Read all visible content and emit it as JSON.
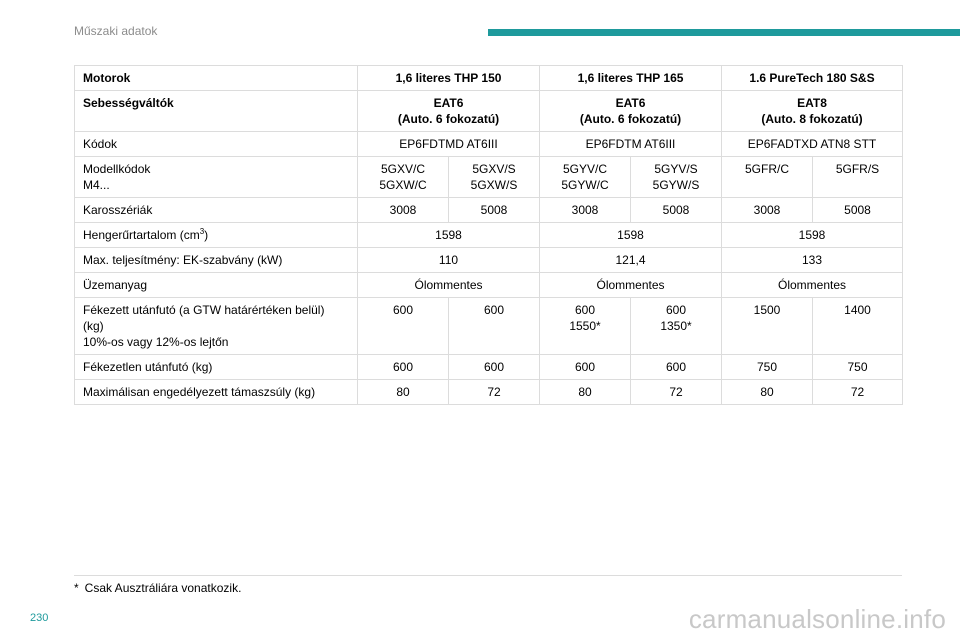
{
  "header": {
    "section_title": "Műszaki adatok"
  },
  "table": {
    "engines": {
      "label": "Motorok",
      "values": [
        "1,6 literes THP 150",
        "1,6 literes THP 165",
        "1.6 PureTech 180 S&S"
      ]
    },
    "gearboxes": {
      "label": "Sebességváltók",
      "values": [
        "EAT6\n(Auto. 6 fokozatú)",
        "EAT6\n(Auto. 6 fokozatú)",
        "EAT8\n(Auto. 8 fokozatú)"
      ]
    },
    "codes": {
      "label": "Kódok",
      "values": [
        "EP6FDTMD AT6III",
        "EP6FDTM AT6III",
        "EP6FADTXD ATN8 STT"
      ]
    },
    "model_codes": {
      "label": "Modellkódok\nM4...",
      "values": [
        "5GXV/C\n5GXW/C",
        "5GXV/S\n5GXW/S",
        "5GYV/C\n5GYW/C",
        "5GYV/S\n5GYW/S",
        "5GFR/C",
        "5GFR/S"
      ]
    },
    "bodies": {
      "label": "Karosszériák",
      "values": [
        "3008",
        "5008",
        "3008",
        "5008",
        "3008",
        "5008"
      ]
    },
    "displacement": {
      "label": "Hengerűrtartalom (cm",
      "label_sup": "3",
      "label_end": ")",
      "values": [
        "1598",
        "1598",
        "1598"
      ]
    },
    "max_power": {
      "label": "Max. teljesítmény: EK-szabvány (kW)",
      "values": [
        "110",
        "121,4",
        "133"
      ]
    },
    "fuel": {
      "label": "Üzemanyag",
      "values": [
        "Ólommentes",
        "Ólommentes",
        "Ólommentes"
      ]
    },
    "braked_trailer": {
      "label": "Fékezett utánfutó (a GTW határértéken belül)\n(kg)\n10%-os vagy 12%-os lejtőn",
      "values": [
        "600",
        "600",
        "600\n1550*",
        "600\n1350*",
        "1500",
        "1400"
      ]
    },
    "unbraked_trailer": {
      "label": "Fékezetlen utánfutó (kg)",
      "values": [
        "600",
        "600",
        "600",
        "600",
        "750",
        "750"
      ]
    },
    "max_nose_weight": {
      "label": "Maximálisan engedélyezett támaszsúly (kg)",
      "values": [
        "80",
        "72",
        "80",
        "72",
        "80",
        "72"
      ]
    }
  },
  "footnote": {
    "marker": "*",
    "text": "Csak Ausztráliára vonatkozik."
  },
  "page_number": "230",
  "watermark": "carmanualsonline.info",
  "colors": {
    "accent": "#1e9a9c",
    "grid": "#dcdcdc",
    "muted": "#8c8c8c"
  }
}
